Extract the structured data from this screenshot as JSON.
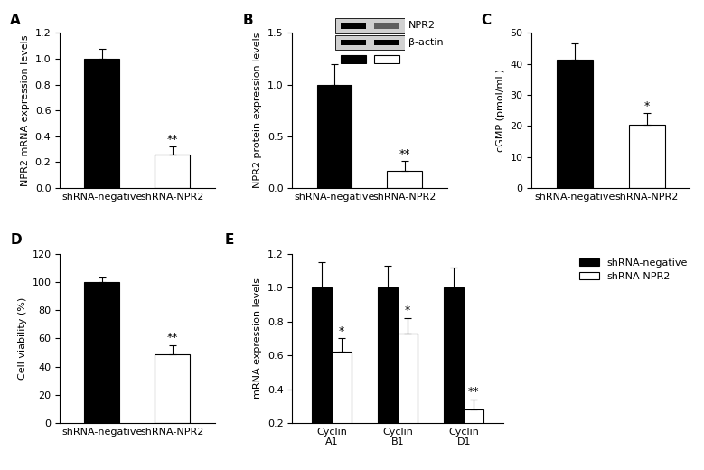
{
  "chart_data": [
    {
      "type": "bar",
      "title": "A",
      "y_label": "NPR2 mRNA expression levels",
      "categories": [
        "shRNA-negative",
        "shRNA-NPR2"
      ],
      "values": [
        1.0,
        0.26
      ],
      "errors": [
        0.08,
        0.06
      ],
      "significance": [
        null,
        "**"
      ],
      "colors": [
        "#000000",
        "#ffffff"
      ],
      "ylim": [
        0,
        1.2
      ],
      "yticks": [
        {
          "value": 0,
          "label": "0.0"
        },
        {
          "value": 0.2,
          "label": "0.2"
        },
        {
          "value": 0.4,
          "label": "0.4"
        },
        {
          "value": 0.6,
          "label": "0.6"
        },
        {
          "value": 0.8,
          "label": "0.8"
        },
        {
          "value": 1.0,
          "label": "1.0"
        },
        {
          "value": 1.2,
          "label": "1.2"
        }
      ]
    },
    {
      "type": "bar",
      "title": "B",
      "y_label": "NPR2 protein expression levels",
      "categories": [
        "shRNA-negative",
        "shRNA-NPR2"
      ],
      "values": [
        1.0,
        0.17
      ],
      "errors": [
        0.2,
        0.09
      ],
      "significance": [
        null,
        "**"
      ],
      "colors": [
        "#000000",
        "#ffffff"
      ],
      "blot_labels": [
        "NPR2",
        "β-actin"
      ],
      "ylim": [
        0,
        1.5
      ],
      "yticks": [
        {
          "value": 0,
          "label": "0.0"
        },
        {
          "value": 0.5,
          "label": "0.5"
        },
        {
          "value": 1.0,
          "label": "1.0"
        },
        {
          "value": 1.5,
          "label": "1.5"
        }
      ]
    },
    {
      "type": "bar",
      "title": "C",
      "y_label": "cGMP (pmol/mL)",
      "categories": [
        "shRNA-negative",
        "shRNA-NPR2"
      ],
      "values": [
        41.5,
        20.3
      ],
      "errors": [
        5.2,
        3.8
      ],
      "significance": [
        null,
        "*"
      ],
      "colors": [
        "#000000",
        "#ffffff"
      ],
      "ylim": [
        0,
        50
      ],
      "yticks": [
        0,
        10,
        20,
        30,
        40,
        50
      ]
    },
    {
      "type": "bar",
      "title": "D",
      "y_label": "Cell viability (%)",
      "categories": [
        "shRNA-negative",
        "shRNA-NPR2"
      ],
      "values": [
        100,
        49
      ],
      "errors": [
        3,
        6
      ],
      "significance": [
        null,
        "**"
      ],
      "colors": [
        "#000000",
        "#ffffff"
      ],
      "ylim": [
        0,
        120
      ],
      "yticks": [
        0,
        20,
        40,
        60,
        80,
        100,
        120
      ]
    },
    {
      "type": "grouped_bar",
      "title": "E",
      "y_label": "mRNA expression levels",
      "categories": [
        "Cyclin\nA1",
        "Cyclin\nB1",
        "Cyclin\nD1"
      ],
      "series": [
        {
          "name": "shRNA-negative",
          "color": "#000000",
          "values": [
            1.0,
            1.0,
            1.0
          ],
          "errors": [
            0.15,
            0.13,
            0.12
          ],
          "significance": [
            null,
            null,
            null
          ]
        },
        {
          "name": "shRNA-NPR2",
          "color": "#ffffff",
          "values": [
            0.62,
            0.73,
            0.28
          ],
          "errors": [
            0.08,
            0.09,
            0.06
          ],
          "significance": [
            "*",
            "*",
            "**"
          ]
        }
      ],
      "legend": "upper right",
      "ylim": [
        0.2,
        1.2
      ],
      "yticks": [
        {
          "value": 0.2,
          "label": "0.2"
        },
        {
          "value": 0.4,
          "label": "0.4"
        },
        {
          "value": 0.6,
          "label": "0.6"
        },
        {
          "value": 0.8,
          "label": "0.8"
        },
        {
          "value": 1.0,
          "label": "1.0"
        },
        {
          "value": 1.2,
          "label": "1.2"
        }
      ]
    }
  ]
}
